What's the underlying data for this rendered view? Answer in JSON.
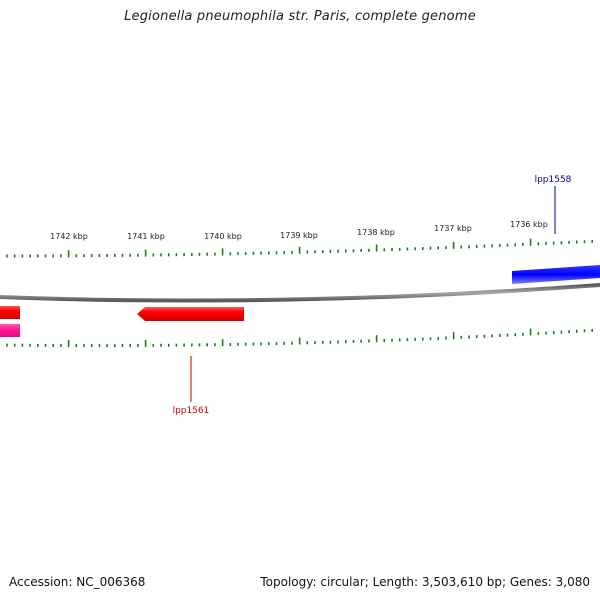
{
  "title": "Legionella pneumophila str. Paris, complete genome",
  "footer": {
    "accession": "Accession: NC_006368",
    "summary": "Topology: circular; Length: 3,503,610 bp; Genes: 3,080"
  },
  "colors": {
    "backbone": "#7a7a7a",
    "tick": "#1f7a1f",
    "gene_red": "#ff0000",
    "gene_blue": "#0000ff",
    "gene_pink": "#ff1493",
    "label_red": "#cc0000",
    "label_blue": "#00008b"
  },
  "ruler": {
    "kbp_labels": [
      "1742 kbp",
      "1741 kbp",
      "1740 kbp",
      "1739 kbp",
      "1738 kbp",
      "1737 kbp",
      "1736 kbp"
    ]
  },
  "genes": [
    {
      "name": "lpp1561",
      "strand": "reverse",
      "color": "red"
    },
    {
      "name": "lpp1558",
      "strand": "forward",
      "color": "blue"
    },
    {
      "name": "",
      "strand": "reverse",
      "color": "red"
    },
    {
      "name": "",
      "strand": "reverse",
      "color": "pink"
    }
  ]
}
